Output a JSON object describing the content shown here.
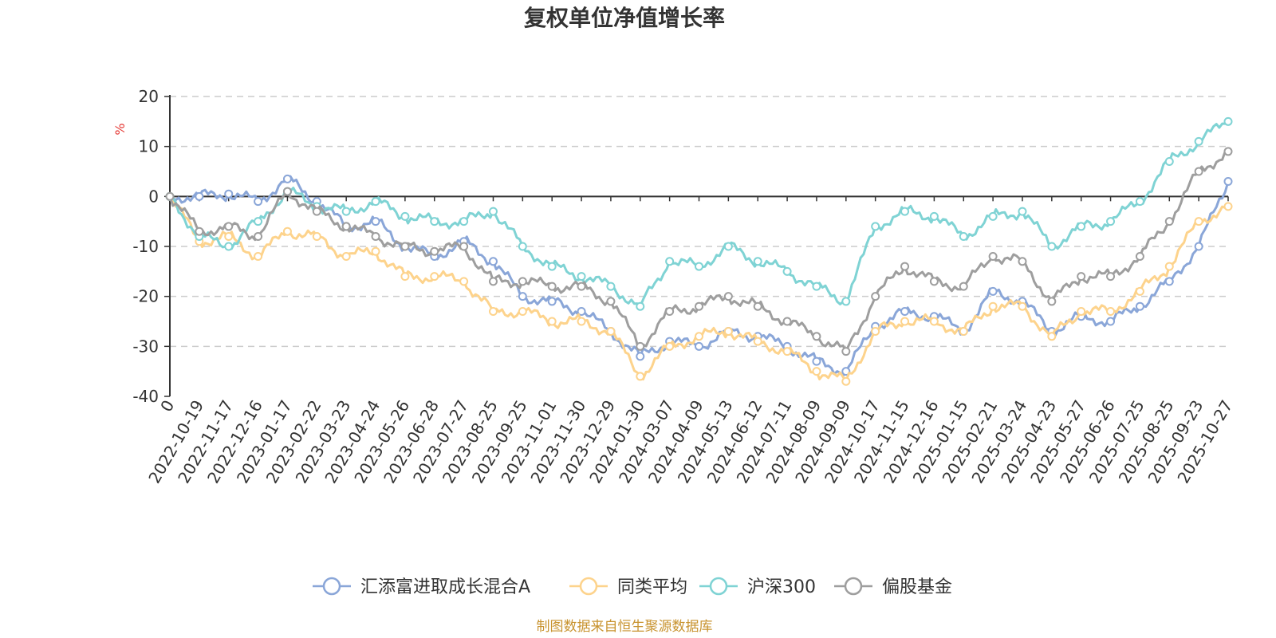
{
  "chart_data": {
    "type": "line",
    "title": "复权单位净值增长率",
    "ylabel": "%",
    "ylim": [
      -40,
      20
    ],
    "yticks": [
      20,
      10,
      0,
      -10,
      -20,
      -30,
      -40
    ],
    "grid": true,
    "legend_position": "bottom",
    "x": [
      "0",
      "2022-10-19",
      "2022-11-17",
      "2022-12-16",
      "2023-01-17",
      "2023-02-22",
      "2023-03-23",
      "2023-04-24",
      "2023-05-26",
      "2023-06-28",
      "2023-07-27",
      "2023-08-25",
      "2023-09-25",
      "2023-11-01",
      "2023-11-30",
      "2023-12-29",
      "2024-01-30",
      "2024-03-07",
      "2024-04-09",
      "2024-05-13",
      "2024-06-12",
      "2024-07-11",
      "2024-08-09",
      "2024-09-09",
      "2024-10-17",
      "2024-11-15",
      "2024-12-16",
      "2025-01-15",
      "2025-02-21",
      "2025-03-24",
      "2025-04-23",
      "2025-05-27",
      "2025-06-26",
      "2025-07-25",
      "2025-08-25",
      "2025-09-23",
      "2025-10-27"
    ],
    "series": [
      {
        "name": "汇添富进取成长混合A",
        "color": "#8aa6d8",
        "values": [
          0,
          0,
          0.5,
          -1,
          3.5,
          -1,
          -6,
          -5,
          -10,
          -12,
          -9,
          -13,
          -20,
          -21,
          -23,
          -27,
          -32,
          -29,
          -30,
          -27,
          -28,
          -30,
          -33,
          -35,
          -26,
          -23,
          -24,
          -27,
          -19,
          -21,
          -27,
          -24,
          -25,
          -22,
          -17,
          -10,
          3
        ]
      },
      {
        "name": "同类平均",
        "color": "#fdd38c",
        "values": [
          0,
          -9,
          -8,
          -12,
          -7,
          -8,
          -12,
          -11,
          -16,
          -16,
          -17,
          -23,
          -23,
          -25,
          -25,
          -27,
          -36,
          -30,
          -28,
          -27,
          -29,
          -31,
          -35,
          -37,
          -27,
          -25,
          -25,
          -27,
          -22,
          -22,
          -28,
          -23,
          -23,
          -19,
          -14,
          -5,
          -2
        ]
      },
      {
        "name": "沪深300",
        "color": "#7fd3d4",
        "values": [
          0,
          -8,
          -10,
          -5,
          1,
          -2,
          -3,
          -1,
          -4,
          -5,
          -5,
          -3,
          -10,
          -14,
          -16,
          -18,
          -22,
          -13,
          -14,
          -10,
          -13,
          -15,
          -18,
          -21,
          -6,
          -3,
          -4,
          -8,
          -4,
          -3,
          -10,
          -6,
          -5,
          -1,
          7,
          11,
          15
        ]
      },
      {
        "name": "偏股基金",
        "color": "#9e9e9e",
        "values": [
          0,
          -7,
          -6,
          -8,
          1,
          -3,
          -6,
          -8,
          -10,
          -11,
          -10,
          -17,
          -17,
          -18,
          -18,
          -21,
          -30,
          -23,
          -22,
          -20,
          -22,
          -25,
          -28,
          -31,
          -20,
          -14,
          -17,
          -18,
          -12,
          -13,
          -21,
          -16,
          -16,
          -12,
          -5,
          5,
          9
        ]
      }
    ]
  },
  "source": "制图数据来自恒生聚源数据库"
}
